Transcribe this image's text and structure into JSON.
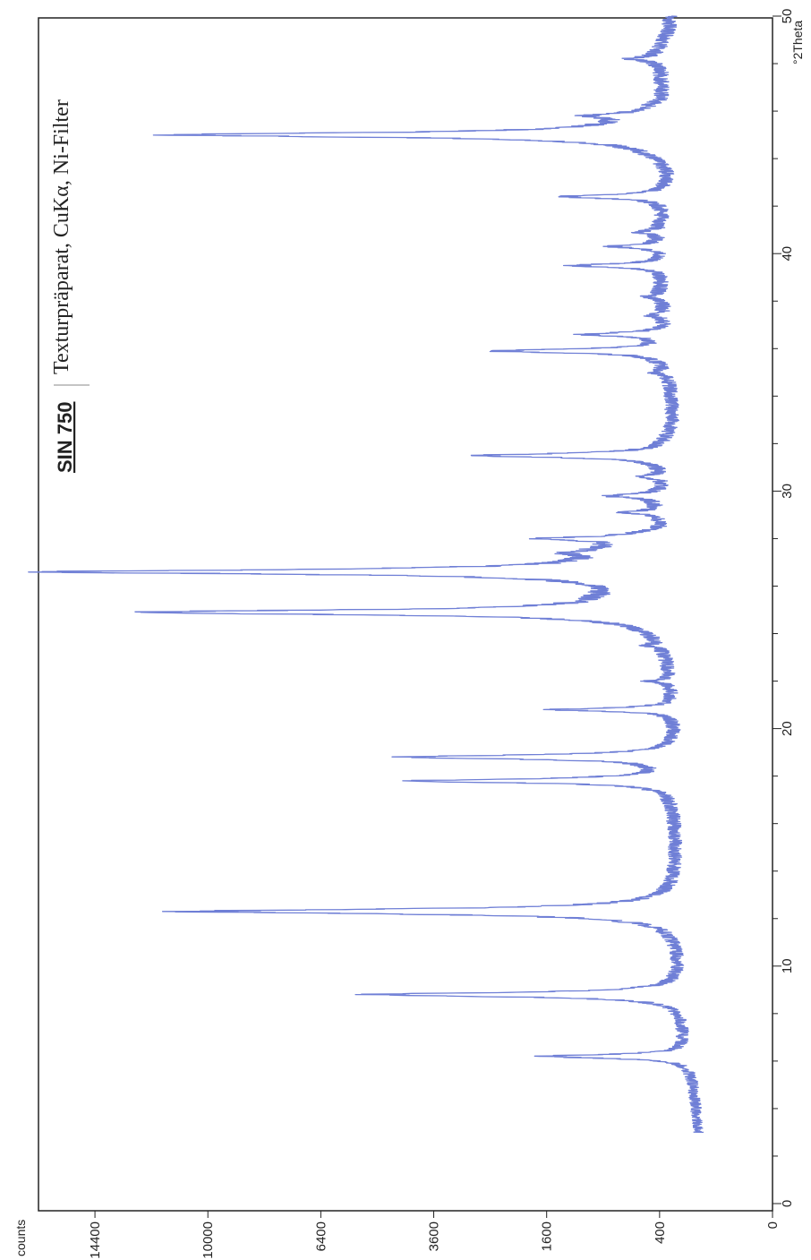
{
  "chart_data": {
    "type": "line",
    "title": "SIN 750",
    "subtitle": "Texturpräparat, CuKα, Ni-Filter",
    "xlabel": "°2Theta",
    "ylabel": "counts",
    "xlim": [
      0,
      50
    ],
    "ylim": [
      0,
      16900
    ],
    "y_scale": "sqrt",
    "x_ticks": [
      0,
      10,
      20,
      30,
      40,
      50
    ],
    "y_ticks": [
      0,
      400,
      1600,
      3600,
      6400,
      10000,
      14400
    ],
    "grid": false,
    "line_color": "#6f7fd6",
    "orientation": "rotated 90° counter-clockwise (x axis runs bottom to top)",
    "baseline": [
      [
        3.0,
        170
      ],
      [
        5.0,
        190
      ],
      [
        5.8,
        200
      ],
      [
        7.0,
        230
      ],
      [
        8.5,
        240
      ],
      [
        10.0,
        250
      ],
      [
        11.5,
        260
      ],
      [
        13.0,
        270
      ],
      [
        15.0,
        280
      ],
      [
        16.5,
        290
      ],
      [
        18.0,
        300
      ],
      [
        19.0,
        260
      ],
      [
        20.0,
        270
      ],
      [
        22.0,
        300
      ],
      [
        23.5,
        330
      ],
      [
        24.5,
        380
      ],
      [
        25.5,
        700
      ],
      [
        26.0,
        560
      ],
      [
        27.5,
        800
      ],
      [
        28.5,
        330
      ],
      [
        29.5,
        380
      ],
      [
        30.5,
        330
      ],
      [
        31.5,
        360
      ],
      [
        33.0,
        300
      ],
      [
        34.5,
        320
      ],
      [
        35.5,
        360
      ],
      [
        37.0,
        330
      ],
      [
        38.5,
        380
      ],
      [
        39.5,
        350
      ],
      [
        41.0,
        380
      ],
      [
        42.0,
        360
      ],
      [
        43.5,
        310
      ],
      [
        44.5,
        400
      ],
      [
        45.6,
        550
      ],
      [
        46.5,
        350
      ],
      [
        47.5,
        370
      ],
      [
        48.5,
        400
      ],
      [
        49.5,
        330
      ],
      [
        50.0,
        330
      ]
    ],
    "peaks": [
      {
        "x": 6.2,
        "y": 1400,
        "w": 0.08
      },
      {
        "x": 8.8,
        "y": 4700,
        "w": 0.08
      },
      {
        "x": 12.3,
        "y": 10200,
        "w": 0.09
      },
      {
        "x": 17.8,
        "y": 3600,
        "w": 0.08
      },
      {
        "x": 18.8,
        "y": 3900,
        "w": 0.08
      },
      {
        "x": 20.8,
        "y": 1200,
        "w": 0.07
      },
      {
        "x": 22.0,
        "y": 160,
        "w": 0.07
      },
      {
        "x": 23.5,
        "y": 110,
        "w": 0.07
      },
      {
        "x": 24.9,
        "y": 12100,
        "w": 0.09
      },
      {
        "x": 26.6,
        "y": 14900,
        "w": 0.09
      },
      {
        "x": 27.4,
        "y": 380,
        "w": 0.08
      },
      {
        "x": 28.0,
        "y": 1050,
        "w": 0.08
      },
      {
        "x": 29.1,
        "y": 280,
        "w": 0.08
      },
      {
        "x": 29.8,
        "y": 480,
        "w": 0.08
      },
      {
        "x": 30.6,
        "y": 180,
        "w": 0.08
      },
      {
        "x": 31.5,
        "y": 2450,
        "w": 0.08
      },
      {
        "x": 35.0,
        "y": 80,
        "w": 0.08
      },
      {
        "x": 35.9,
        "y": 1950,
        "w": 0.08
      },
      {
        "x": 36.6,
        "y": 760,
        "w": 0.08
      },
      {
        "x": 37.4,
        "y": 110,
        "w": 0.08
      },
      {
        "x": 38.2,
        "y": 120,
        "w": 0.08
      },
      {
        "x": 39.5,
        "y": 850,
        "w": 0.08
      },
      {
        "x": 40.3,
        "y": 420,
        "w": 0.08
      },
      {
        "x": 40.9,
        "y": 180,
        "w": 0.08
      },
      {
        "x": 42.4,
        "y": 1000,
        "w": 0.08
      },
      {
        "x": 45.0,
        "y": 10350,
        "w": 0.09
      },
      {
        "x": 45.8,
        "y": 450,
        "w": 0.09
      },
      {
        "x": 48.2,
        "y": 230,
        "w": 0.1
      }
    ]
  }
}
